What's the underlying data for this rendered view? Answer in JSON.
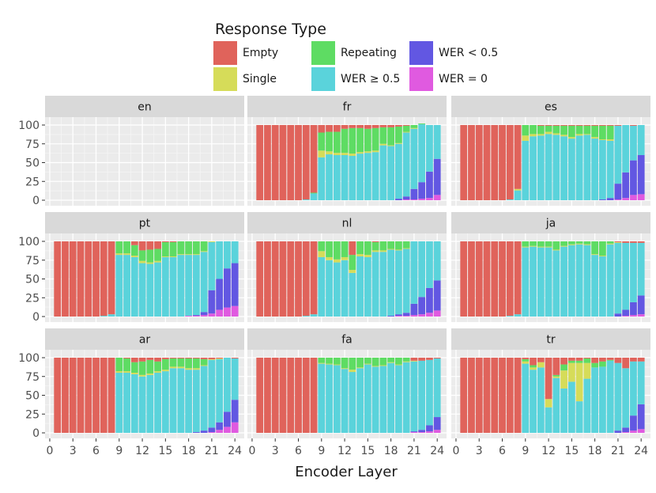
{
  "chart_data": {
    "type": "bar",
    "stacked": true,
    "facet_layout": "3x3",
    "xlabel": "Encoder Layer",
    "ylabel": "",
    "ylim": [
      0,
      100
    ],
    "yticks": [
      0,
      25,
      50,
      75,
      100
    ],
    "xticks": [
      0,
      3,
      6,
      9,
      12,
      15,
      18,
      21,
      24
    ],
    "layers": [
      1,
      2,
      3,
      4,
      5,
      6,
      7,
      8,
      9,
      10,
      11,
      12,
      13,
      14,
      15,
      16,
      17,
      18,
      19,
      20,
      21,
      22,
      23,
      24
    ],
    "legend": {
      "title": "Response Type",
      "placement": "top",
      "entries": [
        {
          "key": "empty",
          "label": "Empty",
          "color": "#E0635B"
        },
        {
          "key": "repeating",
          "label": "Repeating",
          "color": "#5EDC63"
        },
        {
          "key": "wer_lt",
          "label": "WER < 0.5",
          "color": "#6257E2"
        },
        {
          "key": "single",
          "label": "Single",
          "color": "#D6DC59"
        },
        {
          "key": "wer_ge",
          "label": "WER ≥ 0.5",
          "color": "#5AD3DB"
        },
        {
          "key": "wer0",
          "label": "WER = 0",
          "color": "#E05AE0"
        }
      ]
    },
    "stack_order": [
      "wer0",
      "wer_lt",
      "wer_ge",
      "single",
      "repeating",
      "empty"
    ],
    "panels": [
      {
        "lang": "en",
        "empty": true,
        "wer0": [],
        "wer_lt": [],
        "wer_ge": [],
        "single": [],
        "repeating": []
      },
      {
        "lang": "fr",
        "wer0": [
          0,
          0,
          0,
          0,
          0,
          0,
          0,
          0,
          0,
          0,
          0,
          0,
          0,
          0,
          0,
          0,
          0,
          0,
          0,
          1,
          1,
          2,
          3,
          7
        ],
        "wer_lt": [
          0,
          0,
          0,
          0,
          0,
          0,
          0,
          0,
          0,
          0,
          0,
          0,
          0,
          0,
          0,
          0,
          0,
          0,
          2,
          4,
          14,
          22,
          35,
          48
        ],
        "wer_ge": [
          0,
          0,
          0,
          0,
          0,
          0,
          1,
          9,
          57,
          61,
          60,
          60,
          59,
          62,
          63,
          64,
          73,
          72,
          73,
          85,
          80,
          77,
          62,
          45
        ],
        "single": [
          0,
          0,
          0,
          0,
          0,
          0,
          0,
          0,
          9,
          4,
          3,
          3,
          3,
          2,
          2,
          2,
          2,
          1,
          1,
          1,
          1,
          0,
          0,
          0
        ],
        "repeating": [
          0,
          0,
          0,
          0,
          0,
          0,
          0,
          1,
          24,
          26,
          28,
          32,
          34,
          32,
          30,
          30,
          22,
          24,
          22,
          8,
          4,
          1,
          0,
          0
        ]
      },
      {
        "lang": "es",
        "wer0": [
          0,
          0,
          0,
          0,
          0,
          0,
          0,
          0,
          0,
          0,
          0,
          0,
          0,
          0,
          0,
          0,
          0,
          0,
          0,
          0,
          1,
          3,
          7,
          8
        ],
        "wer_lt": [
          0,
          0,
          0,
          0,
          0,
          0,
          0,
          0,
          0,
          0,
          0,
          0,
          0,
          0,
          0,
          0,
          0,
          0,
          1,
          3,
          21,
          34,
          46,
          52
        ],
        "wer_ge": [
          0,
          0,
          0,
          0,
          0,
          0,
          1,
          13,
          79,
          85,
          86,
          88,
          87,
          85,
          82,
          86,
          87,
          82,
          79,
          76,
          77,
          63,
          46,
          40
        ],
        "single": [
          0,
          0,
          0,
          0,
          0,
          0,
          0,
          2,
          7,
          3,
          2,
          3,
          2,
          2,
          2,
          2,
          1,
          2,
          1,
          2,
          0,
          0,
          0,
          0
        ],
        "repeating": [
          0,
          0,
          0,
          0,
          0,
          0,
          0,
          0,
          14,
          12,
          11,
          8,
          10,
          12,
          15,
          11,
          11,
          15,
          18,
          18,
          0,
          0,
          0,
          0
        ]
      },
      {
        "lang": "pt",
        "wer0": [
          0,
          0,
          0,
          0,
          0,
          0,
          0,
          0,
          0,
          0,
          0,
          0,
          0,
          0,
          0,
          0,
          0,
          1,
          1,
          2,
          4,
          9,
          12,
          14
        ],
        "wer_lt": [
          0,
          0,
          0,
          0,
          0,
          0,
          0,
          0,
          0,
          0,
          0,
          0,
          0,
          0,
          0,
          0,
          0,
          0,
          1,
          4,
          31,
          41,
          52,
          57
        ],
        "wer_ge": [
          0,
          0,
          0,
          0,
          0,
          0,
          1,
          3,
          82,
          82,
          79,
          71,
          70,
          72,
          79,
          79,
          82,
          81,
          80,
          80,
          64,
          50,
          36,
          29
        ],
        "single": [
          0,
          0,
          0,
          0,
          0,
          0,
          0,
          0,
          2,
          2,
          2,
          3,
          2,
          2,
          1,
          1,
          1,
          1,
          1,
          1,
          1,
          0,
          0,
          0
        ],
        "repeating": [
          0,
          0,
          0,
          0,
          0,
          0,
          0,
          0,
          16,
          16,
          14,
          14,
          17,
          16,
          19,
          19,
          17,
          17,
          17,
          13,
          0,
          0,
          0,
          0
        ]
      },
      {
        "lang": "nl",
        "wer0": [
          0,
          0,
          0,
          0,
          0,
          0,
          0,
          0,
          0,
          0,
          0,
          0,
          0,
          0,
          0,
          0,
          0,
          0,
          1,
          1,
          2,
          3,
          5,
          8
        ],
        "wer_lt": [
          0,
          0,
          0,
          0,
          0,
          0,
          0,
          0,
          0,
          0,
          0,
          0,
          0,
          0,
          0,
          0,
          0,
          1,
          2,
          4,
          15,
          23,
          33,
          40
        ],
        "wer_ge": [
          0,
          0,
          0,
          0,
          0,
          0,
          1,
          3,
          79,
          75,
          72,
          75,
          58,
          80,
          79,
          86,
          86,
          88,
          85,
          85,
          83,
          74,
          62,
          52
        ],
        "single": [
          0,
          0,
          0,
          0,
          0,
          0,
          0,
          0,
          8,
          4,
          4,
          4,
          4,
          3,
          3,
          2,
          2,
          1,
          1,
          1,
          0,
          0,
          0,
          0
        ],
        "repeating": [
          0,
          0,
          0,
          0,
          0,
          0,
          0,
          0,
          13,
          21,
          24,
          21,
          20,
          17,
          18,
          11,
          12,
          10,
          11,
          9,
          0,
          0,
          0,
          0
        ]
      },
      {
        "lang": "ja",
        "wer0": [
          0,
          0,
          0,
          0,
          0,
          0,
          0,
          0,
          0,
          0,
          0,
          0,
          0,
          0,
          0,
          0,
          0,
          0,
          0,
          0,
          0,
          1,
          2,
          3
        ],
        "wer_lt": [
          0,
          0,
          0,
          0,
          0,
          0,
          0,
          0,
          0,
          0,
          0,
          0,
          0,
          0,
          0,
          0,
          0,
          0,
          0,
          0,
          4,
          8,
          17,
          25
        ],
        "wer_ge": [
          0,
          0,
          0,
          0,
          0,
          0,
          1,
          3,
          92,
          93,
          92,
          92,
          88,
          93,
          95,
          96,
          95,
          82,
          80,
          96,
          94,
          89,
          79,
          70
        ],
        "single": [
          0,
          0,
          0,
          0,
          0,
          0,
          0,
          0,
          1,
          1,
          1,
          1,
          1,
          1,
          1,
          1,
          1,
          1,
          1,
          1,
          1,
          0,
          0,
          0
        ],
        "repeating": [
          0,
          0,
          0,
          0,
          0,
          0,
          0,
          0,
          7,
          6,
          7,
          7,
          11,
          6,
          4,
          3,
          4,
          17,
          19,
          3,
          0,
          0,
          0,
          0
        ]
      },
      {
        "lang": "ar",
        "wer0": [
          0,
          0,
          0,
          0,
          0,
          0,
          0,
          0,
          0,
          0,
          0,
          0,
          0,
          0,
          0,
          0,
          0,
          0,
          0,
          0,
          1,
          4,
          8,
          14
        ],
        "wer_lt": [
          0,
          0,
          0,
          0,
          0,
          0,
          0,
          0,
          0,
          0,
          0,
          0,
          0,
          0,
          0,
          0,
          0,
          0,
          1,
          3,
          6,
          10,
          20,
          30
        ],
        "wer_ge": [
          0,
          0,
          0,
          0,
          0,
          0,
          0,
          0,
          80,
          80,
          78,
          75,
          77,
          80,
          82,
          86,
          86,
          84,
          83,
          86,
          90,
          84,
          72,
          55
        ],
        "single": [
          0,
          0,
          0,
          0,
          0,
          0,
          0,
          0,
          2,
          2,
          2,
          2,
          2,
          2,
          2,
          2,
          2,
          2,
          2,
          1,
          1,
          1,
          0,
          0
        ],
        "repeating": [
          0,
          0,
          0,
          0,
          0,
          0,
          0,
          0,
          18,
          17,
          14,
          18,
          18,
          13,
          14,
          11,
          11,
          13,
          13,
          8,
          0,
          0,
          0,
          0
        ]
      },
      {
        "lang": "fa",
        "wer0": [
          0,
          0,
          0,
          0,
          0,
          0,
          0,
          0,
          0,
          0,
          0,
          0,
          0,
          0,
          0,
          0,
          0,
          0,
          0,
          0,
          1,
          1,
          2,
          4
        ],
        "wer_lt": [
          0,
          0,
          0,
          0,
          0,
          0,
          0,
          0,
          0,
          0,
          0,
          0,
          0,
          0,
          0,
          0,
          0,
          0,
          0,
          0,
          1,
          3,
          8,
          17
        ],
        "wer_ge": [
          0,
          0,
          0,
          0,
          0,
          0,
          0,
          0,
          92,
          91,
          90,
          85,
          81,
          86,
          91,
          88,
          89,
          93,
          90,
          94,
          93,
          92,
          87,
          78
        ],
        "single": [
          0,
          0,
          0,
          0,
          0,
          0,
          0,
          0,
          1,
          1,
          1,
          1,
          3,
          1,
          1,
          1,
          1,
          1,
          1,
          1,
          1,
          0,
          0,
          0
        ],
        "repeating": [
          0,
          0,
          0,
          0,
          0,
          0,
          0,
          0,
          7,
          8,
          9,
          14,
          16,
          13,
          8,
          11,
          10,
          6,
          9,
          5,
          0,
          0,
          0,
          0
        ]
      },
      {
        "lang": "tr",
        "wer0": [
          0,
          0,
          0,
          0,
          0,
          0,
          0,
          0,
          0,
          0,
          0,
          0,
          0,
          0,
          0,
          0,
          0,
          0,
          0,
          0,
          0,
          1,
          3,
          5
        ],
        "wer_lt": [
          0,
          0,
          0,
          0,
          0,
          0,
          0,
          0,
          0,
          0,
          0,
          0,
          0,
          0,
          0,
          0,
          0,
          0,
          0,
          0,
          3,
          6,
          20,
          33
        ],
        "wer_ge": [
          0,
          0,
          0,
          0,
          0,
          0,
          0,
          0,
          92,
          84,
          87,
          34,
          73,
          59,
          68,
          42,
          72,
          87,
          88,
          96,
          90,
          79,
          72,
          57
        ],
        "single": [
          0,
          0,
          0,
          0,
          0,
          0,
          0,
          0,
          3,
          3,
          7,
          11,
          2,
          24,
          25,
          51,
          21,
          0,
          0,
          0,
          0,
          0,
          0,
          0
        ],
        "repeating": [
          0,
          0,
          0,
          0,
          0,
          0,
          0,
          0,
          3,
          3,
          0,
          0,
          2,
          8,
          3,
          3,
          6,
          6,
          7,
          1,
          0,
          0,
          0,
          0
        ]
      }
    ]
  }
}
